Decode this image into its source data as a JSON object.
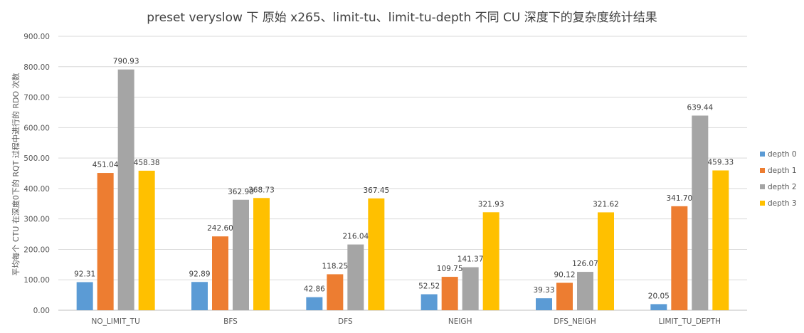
{
  "chart_data": {
    "type": "bar",
    "title": "preset veryslow 下 原始 x265、limit-tu、limit-tu-depth 不同 CU 深度下的复杂度统计结果",
    "ylabel": "平均每个 CTU 在深度0下的 RQT 过程中进行的 RDO 次数",
    "xlabel": "",
    "ylim": [
      0,
      900
    ],
    "yticks": [
      "0.00",
      "100.00",
      "200.00",
      "300.00",
      "400.00",
      "500.00",
      "600.00",
      "700.00",
      "800.00",
      "900.00"
    ],
    "grid": true,
    "legend_position": "right",
    "categories": [
      "NO_LIMIT_TU",
      "BFS",
      "DFS",
      "NEIGH",
      "DFS_NEIGH",
      "LIMIT_TU_DEPTH"
    ],
    "series": [
      {
        "name": "depth 0",
        "color": "#5B9BD5",
        "values": [
          92.31,
          92.89,
          42.86,
          52.52,
          39.33,
          20.05
        ]
      },
      {
        "name": "depth 1",
        "color": "#ED7D31",
        "values": [
          451.04,
          242.6,
          118.25,
          109.75,
          90.12,
          341.7
        ]
      },
      {
        "name": "depth 2",
        "color": "#A5A5A5",
        "values": [
          790.93,
          362.9,
          216.04,
          141.37,
          126.07,
          639.44
        ]
      },
      {
        "name": "depth 3",
        "color": "#FFC000",
        "values": [
          458.38,
          368.73,
          367.45,
          321.93,
          321.62,
          459.33
        ]
      }
    ]
  }
}
